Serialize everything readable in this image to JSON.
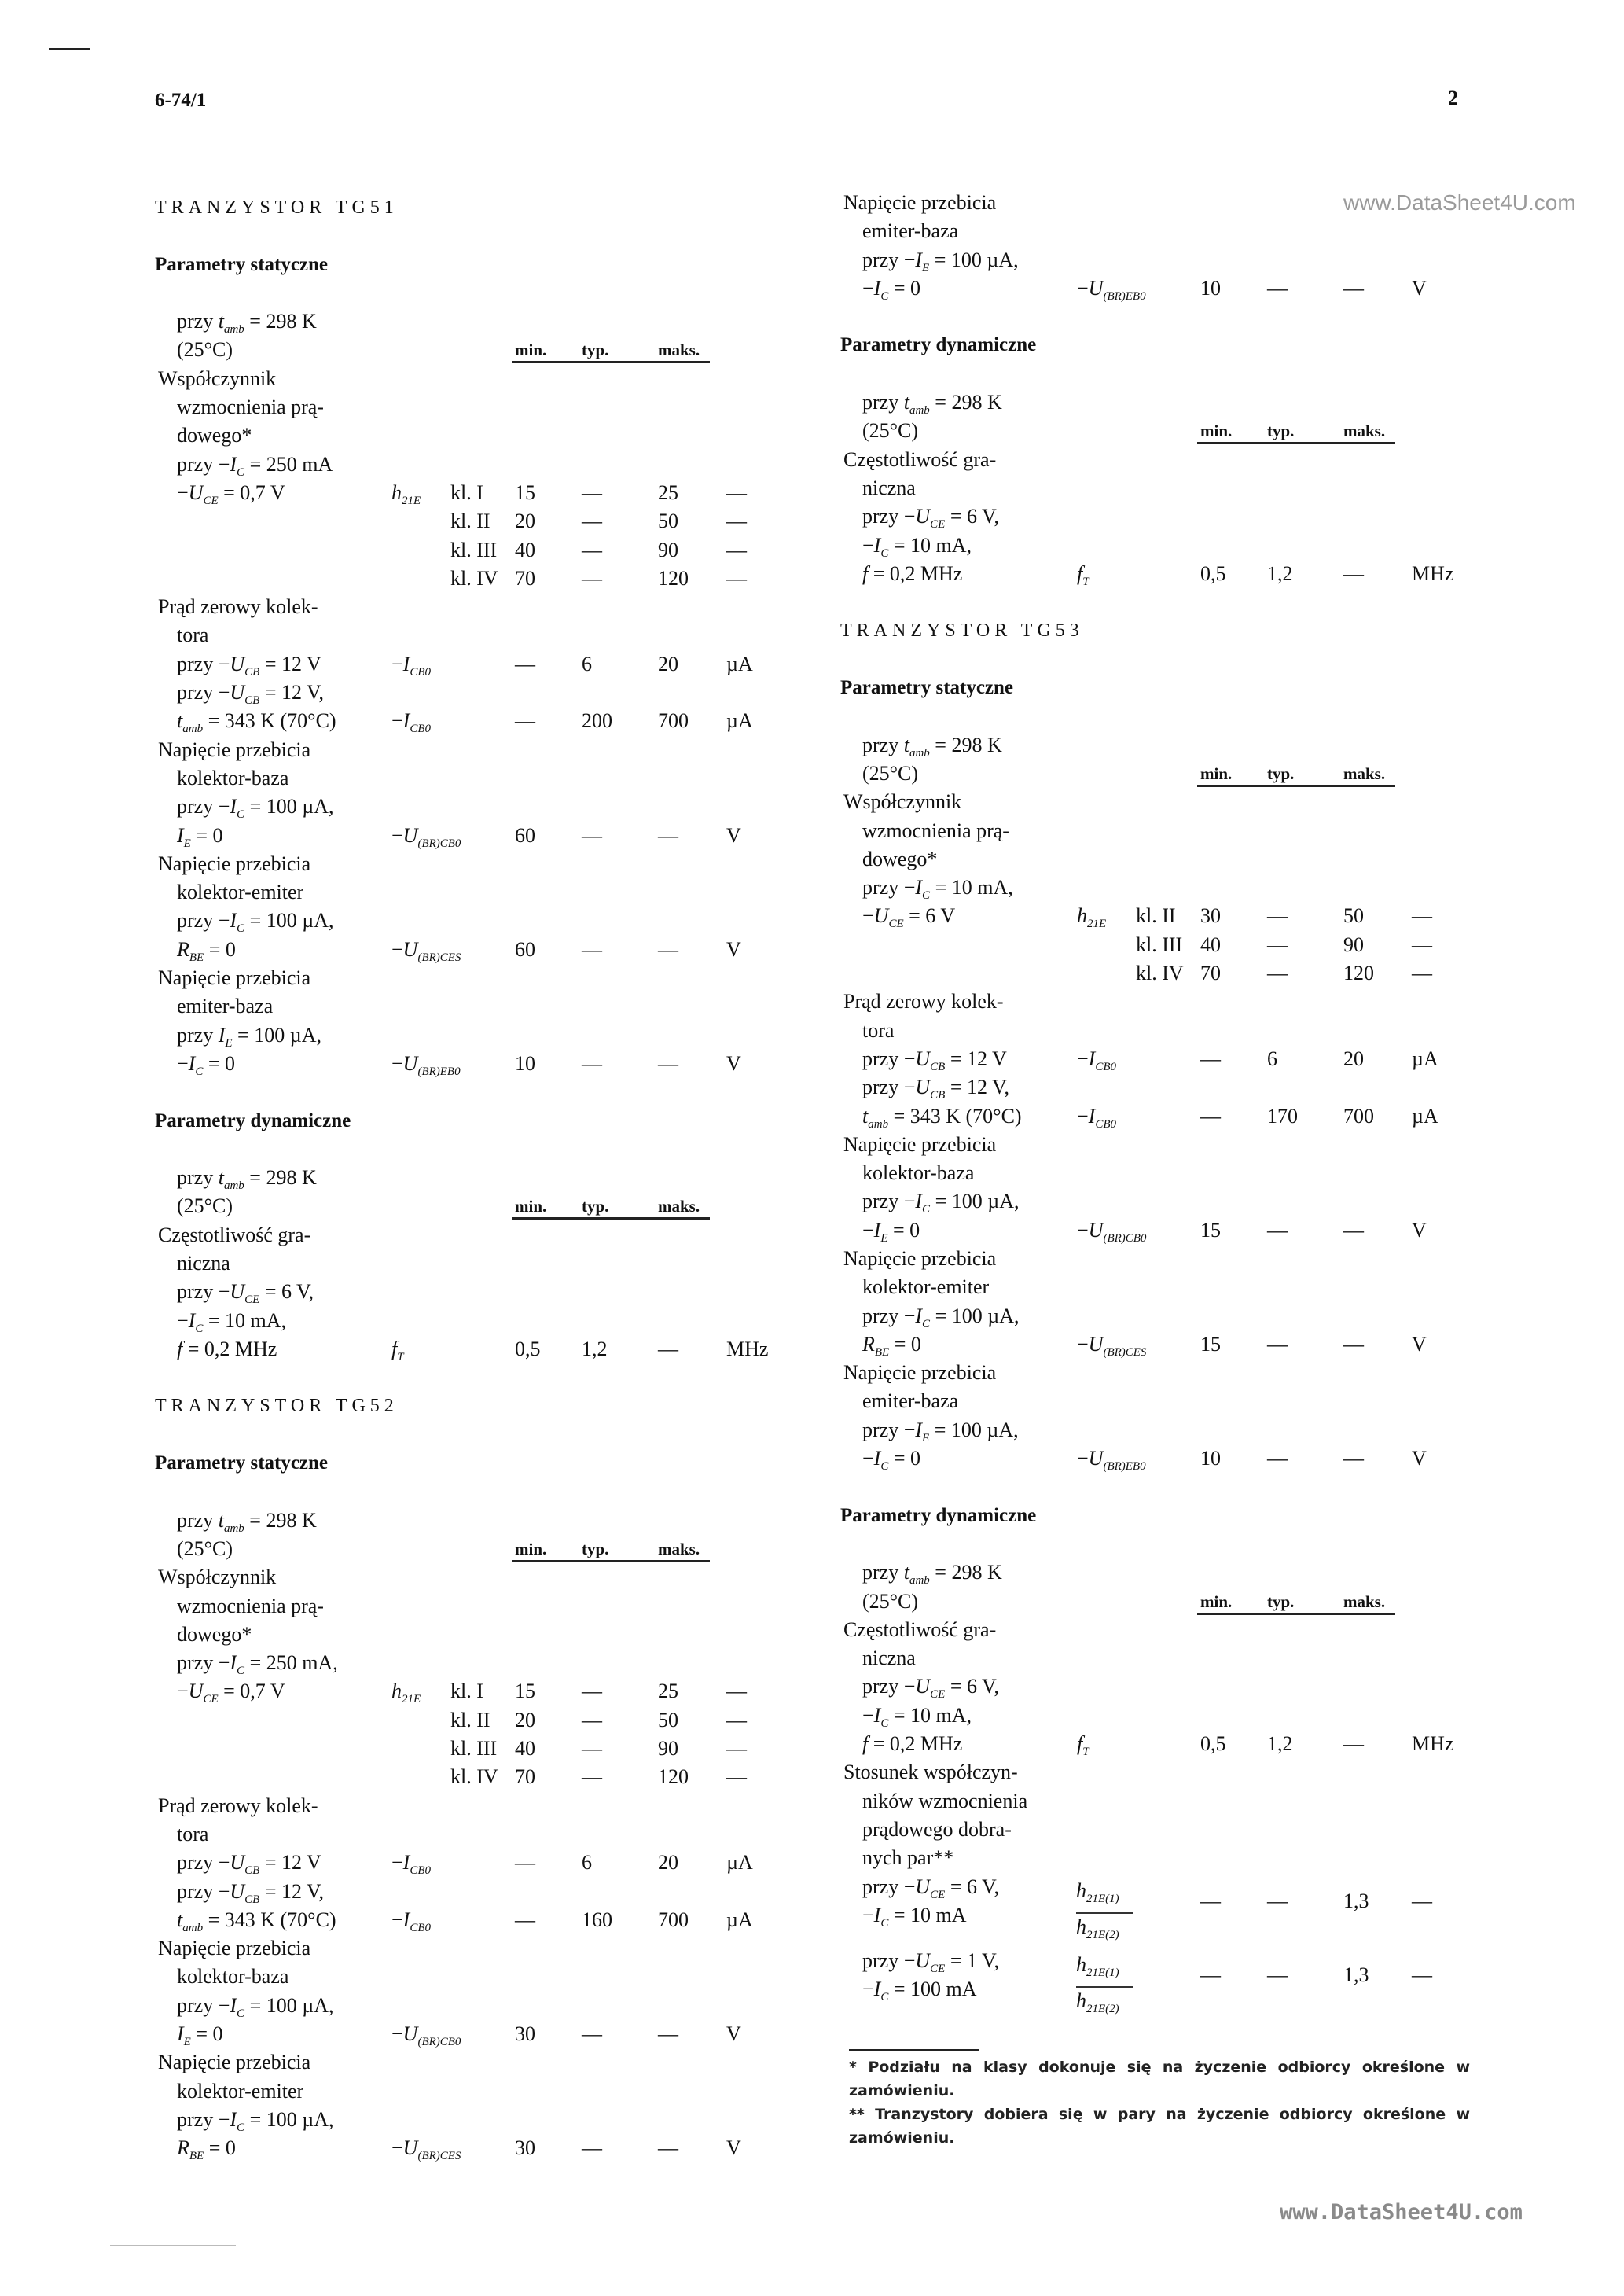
{
  "page": {
    "doc_number": "6-74/1",
    "page_number": "2",
    "watermark_top": "www.DataSheet4U.com",
    "watermark_bottom": "www.DataSheet4U.com"
  },
  "col_headers": [
    "min.",
    "typ.",
    "maks."
  ],
  "left": [
    {
      "t": "title",
      "text": "TRANZYSTOR TG51"
    },
    {
      "t": "head",
      "text": "Parametry statyczne"
    },
    {
      "t": "row",
      "label": [
        "przy ",
        {
          "v": "t",
          "s": "amb"
        },
        " = 298 K"
      ]
    },
    {
      "t": "row",
      "label": [
        "(25°C)"
      ],
      "colhead": true
    },
    {
      "t": "row",
      "param": true,
      "label": [
        "Współczynnik"
      ]
    },
    {
      "t": "row",
      "label": [
        "wzmocnienia prą-"
      ]
    },
    {
      "t": "row",
      "label": [
        "dowego*"
      ]
    },
    {
      "t": "row",
      "label": [
        "przy −",
        {
          "v": "I",
          "s": "C"
        },
        " = 250 mA"
      ]
    },
    {
      "t": "row",
      "label": [
        "−",
        {
          "v": "U",
          "s": "CE"
        },
        " = 0,7 V"
      ],
      "sym": [
        {
          "v": "h",
          "s": "21E"
        }
      ],
      "cls": "kl. I",
      "min": "15",
      "typ": "—",
      "max": "25",
      "unit": "—"
    },
    {
      "t": "row",
      "label": [],
      "cls": "kl. II",
      "min": "20",
      "typ": "—",
      "max": "50",
      "unit": "—"
    },
    {
      "t": "row",
      "label": [],
      "cls": "kl. III",
      "min": "40",
      "typ": "—",
      "max": "90",
      "unit": "—"
    },
    {
      "t": "row",
      "label": [],
      "cls": "kl. IV",
      "min": "70",
      "typ": "—",
      "max": "120",
      "unit": "—"
    },
    {
      "t": "row",
      "param": true,
      "label": [
        "Prąd zerowy kolek-"
      ]
    },
    {
      "t": "row",
      "label": [
        "tora"
      ]
    },
    {
      "t": "row",
      "label": [
        "przy −",
        {
          "v": "U",
          "s": "CB"
        },
        " = 12 V"
      ],
      "sym": [
        "−",
        {
          "v": "I",
          "s": "CB0"
        }
      ],
      "min": "—",
      "typ": "6",
      "max": "20",
      "unit": "µA"
    },
    {
      "t": "row",
      "label": [
        "przy −",
        {
          "v": "U",
          "s": "CB"
        },
        " = 12 V,"
      ]
    },
    {
      "t": "row",
      "label": [
        {
          "v": "t",
          "s": "amb"
        },
        " = 343 K (70°C)"
      ],
      "sym": [
        "−",
        {
          "v": "I",
          "s": "CB0"
        }
      ],
      "min": "—",
      "typ": "200",
      "max": "700",
      "unit": "µA"
    },
    {
      "t": "row",
      "param": true,
      "label": [
        "Napięcie przebicia"
      ]
    },
    {
      "t": "row",
      "label": [
        "kolektor-baza"
      ]
    },
    {
      "t": "row",
      "label": [
        "przy −",
        {
          "v": "I",
          "s": "C"
        },
        " = 100 µA,"
      ]
    },
    {
      "t": "row",
      "label": [
        {
          "v": "I",
          "s": "E"
        },
        " = 0"
      ],
      "sym": [
        "−",
        {
          "v": "U",
          "s": "(BR)CB0"
        }
      ],
      "min": "60",
      "typ": "—",
      "max": "—",
      "unit": "V"
    },
    {
      "t": "row",
      "param": true,
      "label": [
        "Napięcie przebicia"
      ]
    },
    {
      "t": "row",
      "label": [
        "kolektor-emiter"
      ]
    },
    {
      "t": "row",
      "label": [
        "przy −",
        {
          "v": "I",
          "s": "C"
        },
        " = 100 µA,"
      ]
    },
    {
      "t": "row",
      "label": [
        {
          "v": "R",
          "s": "BE"
        },
        " = 0"
      ],
      "sym": [
        "−",
        {
          "v": "U",
          "s": "(BR)CES"
        }
      ],
      "min": "60",
      "typ": "—",
      "max": "—",
      "unit": "V"
    },
    {
      "t": "row",
      "param": true,
      "label": [
        "Napięcie przebicia"
      ]
    },
    {
      "t": "row",
      "label": [
        "emiter-baza"
      ]
    },
    {
      "t": "row",
      "label": [
        "przy ",
        {
          "v": "I",
          "s": "E"
        },
        " = 100 µA,"
      ]
    },
    {
      "t": "row",
      "label": [
        "−",
        {
          "v": "I",
          "s": "C"
        },
        " = 0"
      ],
      "sym": [
        "−",
        {
          "v": "U",
          "s": "(BR)EB0"
        }
      ],
      "min": "10",
      "typ": "—",
      "max": "—",
      "unit": "V"
    },
    {
      "t": "head",
      "text": "Parametry dynamiczne"
    },
    {
      "t": "row",
      "label": [
        "przy ",
        {
          "v": "t",
          "s": "amb"
        },
        " = 298 K"
      ]
    },
    {
      "t": "row",
      "label": [
        "(25°C)"
      ],
      "colhead": true
    },
    {
      "t": "row",
      "param": true,
      "label": [
        "Częstotliwość gra-"
      ]
    },
    {
      "t": "row",
      "label": [
        "niczna"
      ]
    },
    {
      "t": "row",
      "label": [
        "przy −",
        {
          "v": "U",
          "s": "CE"
        },
        " = 6 V,"
      ]
    },
    {
      "t": "row",
      "label": [
        "−",
        {
          "v": "I",
          "s": "C"
        },
        " = 10 mA,"
      ]
    },
    {
      "t": "row",
      "label": [
        {
          "v": "f",
          "s": ""
        },
        " = 0,2 MHz"
      ],
      "sym": [
        {
          "v": "f",
          "s": "T"
        }
      ],
      "min": "0,5",
      "typ": "1,2",
      "max": "—",
      "unit": "MHz"
    },
    {
      "t": "title",
      "text": "TRANZYSTOR TG52"
    },
    {
      "t": "head",
      "text": "Parametry statyczne"
    },
    {
      "t": "row",
      "label": [
        "przy ",
        {
          "v": "t",
          "s": "amb"
        },
        " = 298 K"
      ]
    },
    {
      "t": "row",
      "label": [
        "(25°C)"
      ],
      "colhead": true
    },
    {
      "t": "row",
      "param": true,
      "label": [
        "Współczynnik"
      ]
    },
    {
      "t": "row",
      "label": [
        "wzmocnienia prą-"
      ]
    },
    {
      "t": "row",
      "label": [
        "dowego*"
      ]
    },
    {
      "t": "row",
      "label": [
        "przy −",
        {
          "v": "I",
          "s": "C"
        },
        " = 250 mA,"
      ]
    },
    {
      "t": "row",
      "label": [
        "−",
        {
          "v": "U",
          "s": "CE"
        },
        " = 0,7 V"
      ],
      "sym": [
        {
          "v": "h",
          "s": "21E"
        }
      ],
      "cls": "kl. I",
      "min": "15",
      "typ": "—",
      "max": "25",
      "unit": "—"
    },
    {
      "t": "row",
      "label": [],
      "cls": "kl. II",
      "min": "20",
      "typ": "—",
      "max": "50",
      "unit": "—"
    },
    {
      "t": "row",
      "label": [],
      "cls": "kl. III",
      "min": "40",
      "typ": "—",
      "max": "90",
      "unit": "—"
    },
    {
      "t": "row",
      "label": [],
      "cls": "kl. IV",
      "min": "70",
      "typ": "—",
      "max": "120",
      "unit": "—"
    },
    {
      "t": "row",
      "param": true,
      "label": [
        "Prąd zerowy kolek-"
      ]
    },
    {
      "t": "row",
      "label": [
        "tora"
      ]
    },
    {
      "t": "row",
      "label": [
        "przy −",
        {
          "v": "U",
          "s": "CB"
        },
        " = 12 V"
      ],
      "sym": [
        "−",
        {
          "v": "I",
          "s": "CB0"
        }
      ],
      "min": "—",
      "typ": "6",
      "max": "20",
      "unit": "µA"
    },
    {
      "t": "row",
      "label": [
        "przy −",
        {
          "v": "U",
          "s": "CB"
        },
        " = 12 V,"
      ]
    },
    {
      "t": "row",
      "label": [
        {
          "v": "t",
          "s": "amb"
        },
        " = 343 K (70°C)"
      ],
      "sym": [
        "−",
        {
          "v": "I",
          "s": "CB0"
        }
      ],
      "min": "—",
      "typ": "160",
      "max": "700",
      "unit": "µA"
    },
    {
      "t": "row",
      "param": true,
      "label": [
        "Napięcie przebicia"
      ]
    },
    {
      "t": "row",
      "label": [
        "kolektor-baza"
      ]
    },
    {
      "t": "row",
      "label": [
        "przy −",
        {
          "v": "I",
          "s": "C"
        },
        " = 100 µA,"
      ]
    },
    {
      "t": "row",
      "label": [
        {
          "v": "I",
          "s": "E"
        },
        " = 0"
      ],
      "sym": [
        "−",
        {
          "v": "U",
          "s": "(BR)CB0"
        }
      ],
      "min": "30",
      "typ": "—",
      "max": "—",
      "unit": "V"
    },
    {
      "t": "row",
      "param": true,
      "label": [
        "Napięcie przebicia"
      ]
    },
    {
      "t": "row",
      "label": [
        "kolektor-emiter"
      ]
    },
    {
      "t": "row",
      "label": [
        "przy −",
        {
          "v": "I",
          "s": "C"
        },
        " = 100 µA,"
      ]
    },
    {
      "t": "row",
      "label": [
        {
          "v": "R",
          "s": "BE"
        },
        " = 0"
      ],
      "sym": [
        "−",
        {
          "v": "U",
          "s": "(BR)CES"
        }
      ],
      "min": "30",
      "typ": "—",
      "max": "—",
      "unit": "V"
    }
  ],
  "right": [
    {
      "t": "row",
      "param": true,
      "label": [
        "Napięcie przebicia"
      ]
    },
    {
      "t": "row",
      "label": [
        "emiter-baza"
      ]
    },
    {
      "t": "row",
      "label": [
        "przy −",
        {
          "v": "I",
          "s": "E"
        },
        " = 100 µA,"
      ]
    },
    {
      "t": "row",
      "label": [
        "−",
        {
          "v": "I",
          "s": "C"
        },
        " = 0"
      ],
      "sym": [
        "−",
        {
          "v": "U",
          "s": "(BR)EB0"
        }
      ],
      "min": "10",
      "typ": "—",
      "max": "—",
      "unit": "V"
    },
    {
      "t": "head",
      "text": "Parametry dynamiczne"
    },
    {
      "t": "row",
      "label": [
        "przy ",
        {
          "v": "t",
          "s": "amb"
        },
        " = 298 K"
      ]
    },
    {
      "t": "row",
      "label": [
        "(25°C)"
      ],
      "colhead": true
    },
    {
      "t": "row",
      "param": true,
      "label": [
        "Częstotliwość gra-"
      ]
    },
    {
      "t": "row",
      "label": [
        "niczna"
      ]
    },
    {
      "t": "row",
      "label": [
        "przy −",
        {
          "v": "U",
          "s": "CE"
        },
        " = 6 V,"
      ]
    },
    {
      "t": "row",
      "label": [
        "−",
        {
          "v": "I",
          "s": "C"
        },
        " = 10 mA,"
      ]
    },
    {
      "t": "row",
      "label": [
        {
          "v": "f",
          "s": ""
        },
        " = 0,2 MHz"
      ],
      "sym": [
        {
          "v": "f",
          "s": "T"
        }
      ],
      "min": "0,5",
      "typ": "1,2",
      "max": "—",
      "unit": "MHz"
    },
    {
      "t": "title",
      "text": "TRANZYSTOR TG53"
    },
    {
      "t": "head",
      "text": "Parametry statyczne"
    },
    {
      "t": "row",
      "label": [
        "przy ",
        {
          "v": "t",
          "s": "amb"
        },
        " = 298 K"
      ]
    },
    {
      "t": "row",
      "label": [
        "(25°C)"
      ],
      "colhead": true
    },
    {
      "t": "row",
      "param": true,
      "label": [
        "Współczynnik"
      ]
    },
    {
      "t": "row",
      "label": [
        "wzmocnienia prą-"
      ]
    },
    {
      "t": "row",
      "label": [
        "dowego*"
      ]
    },
    {
      "t": "row",
      "label": [
        "przy −",
        {
          "v": "I",
          "s": "C"
        },
        " = 10 mA,"
      ]
    },
    {
      "t": "row",
      "label": [
        "−",
        {
          "v": "U",
          "s": "CE"
        },
        " = 6 V"
      ],
      "sym": [
        {
          "v": "h",
          "s": "21E"
        }
      ],
      "cls": "kl. II",
      "min": "30",
      "typ": "—",
      "max": "50",
      "unit": "—"
    },
    {
      "t": "row",
      "label": [],
      "cls": "kl. III",
      "min": "40",
      "typ": "—",
      "max": "90",
      "unit": "—"
    },
    {
      "t": "row",
      "label": [],
      "cls": "kl. IV",
      "min": "70",
      "typ": "—",
      "max": "120",
      "unit": "—"
    },
    {
      "t": "row",
      "param": true,
      "label": [
        "Prąd zerowy kolek-"
      ]
    },
    {
      "t": "row",
      "label": [
        "tora"
      ]
    },
    {
      "t": "row",
      "label": [
        "przy −",
        {
          "v": "U",
          "s": "CB"
        },
        " = 12 V"
      ],
      "sym": [
        "−",
        {
          "v": "I",
          "s": "CB0"
        }
      ],
      "min": "—",
      "typ": "6",
      "max": "20",
      "unit": "µA"
    },
    {
      "t": "row",
      "label": [
        "przy −",
        {
          "v": "U",
          "s": "CB"
        },
        " = 12 V,"
      ]
    },
    {
      "t": "row",
      "label": [
        {
          "v": "t",
          "s": "amb"
        },
        " = 343 K (70°C)"
      ],
      "sym": [
        "−",
        {
          "v": "I",
          "s": "CB0"
        }
      ],
      "min": "—",
      "typ": "170",
      "max": "700",
      "unit": "µA"
    },
    {
      "t": "row",
      "param": true,
      "label": [
        "Napięcie przebicia"
      ]
    },
    {
      "t": "row",
      "label": [
        "kolektor-baza"
      ]
    },
    {
      "t": "row",
      "label": [
        "przy −",
        {
          "v": "I",
          "s": "C"
        },
        " = 100 µA,"
      ]
    },
    {
      "t": "row",
      "label": [
        "−",
        {
          "v": "I",
          "s": "E"
        },
        " = 0"
      ],
      "sym": [
        "−",
        {
          "v": "U",
          "s": "(BR)CB0"
        }
      ],
      "min": "15",
      "typ": "—",
      "max": "—",
      "unit": "V"
    },
    {
      "t": "row",
      "param": true,
      "label": [
        "Napięcie przebicia"
      ]
    },
    {
      "t": "row",
      "label": [
        "kolektor-emiter"
      ]
    },
    {
      "t": "row",
      "label": [
        "przy −",
        {
          "v": "I",
          "s": "C"
        },
        " = 100 µA,"
      ]
    },
    {
      "t": "row",
      "label": [
        {
          "v": "R",
          "s": "BE"
        },
        " = 0"
      ],
      "sym": [
        "−",
        {
          "v": "U",
          "s": "(BR)CES"
        }
      ],
      "min": "15",
      "typ": "—",
      "max": "—",
      "unit": "V"
    },
    {
      "t": "row",
      "param": true,
      "label": [
        "Napięcie przebicia"
      ]
    },
    {
      "t": "row",
      "label": [
        "emiter-baza"
      ]
    },
    {
      "t": "row",
      "label": [
        "przy −",
        {
          "v": "I",
          "s": "E"
        },
        " = 100 µA,"
      ]
    },
    {
      "t": "row",
      "label": [
        "−",
        {
          "v": "I",
          "s": "C"
        },
        " = 0"
      ],
      "sym": [
        "−",
        {
          "v": "U",
          "s": "(BR)EB0"
        }
      ],
      "min": "10",
      "typ": "—",
      "max": "—",
      "unit": "V"
    },
    {
      "t": "head",
      "text": "Parametry dynamiczne"
    },
    {
      "t": "row",
      "label": [
        "przy ",
        {
          "v": "t",
          "s": "amb"
        },
        " = 298 K"
      ]
    },
    {
      "t": "row",
      "label": [
        "(25°C)"
      ],
      "colhead": true
    },
    {
      "t": "row",
      "param": true,
      "label": [
        "Częstotliwość gra-"
      ]
    },
    {
      "t": "row",
      "label": [
        "niczna"
      ]
    },
    {
      "t": "row",
      "label": [
        "przy −",
        {
          "v": "U",
          "s": "CE"
        },
        " = 6 V,"
      ]
    },
    {
      "t": "row",
      "label": [
        "−",
        {
          "v": "I",
          "s": "C"
        },
        " = 10 mA,"
      ]
    },
    {
      "t": "row",
      "label": [
        {
          "v": "f",
          "s": ""
        },
        " = 0,2 MHz"
      ],
      "sym": [
        {
          "v": "f",
          "s": "T"
        }
      ],
      "min": "0,5",
      "typ": "1,2",
      "max": "—",
      "unit": "MHz"
    },
    {
      "t": "row",
      "param": true,
      "label": [
        "Stosunek współczyn-"
      ]
    },
    {
      "t": "row",
      "label": [
        "ników wzmocnienia"
      ]
    },
    {
      "t": "row",
      "label": [
        "prądowego dobra-"
      ]
    },
    {
      "t": "row",
      "label": [
        "nych par**"
      ]
    },
    {
      "t": "ratio",
      "line1": [
        "przy −",
        {
          "v": "U",
          "s": "CE"
        },
        " = 6 V,"
      ],
      "line2": [
        "−",
        {
          "v": "I",
          "s": "C"
        },
        " = 10 mA"
      ],
      "num": {
        "v": "h",
        "s": "21E(1)"
      },
      "den": {
        "v": "h",
        "s": "21E(2)"
      },
      "min": "—",
      "typ": "—",
      "max": "1,3",
      "unit": "—"
    },
    {
      "t": "ratio",
      "line1": [
        "przy −",
        {
          "v": "U",
          "s": "CE"
        },
        " = 1 V,"
      ],
      "line2": [
        "−",
        {
          "v": "I",
          "s": "C"
        },
        " = 100 mA"
      ],
      "num": {
        "v": "h",
        "s": "21E(1)"
      },
      "den": {
        "v": "h",
        "s": "21E(2)"
      },
      "min": "—",
      "typ": "—",
      "max": "1,3",
      "unit": "—"
    }
  ],
  "footnotes": [
    "* Podziału na klasy dokonuje się na życzenie odbiorcy określone w zamówieniu.",
    "** Tranzystory dobiera się w pary na życzenie odbiorcy określone w zamówieniu."
  ]
}
